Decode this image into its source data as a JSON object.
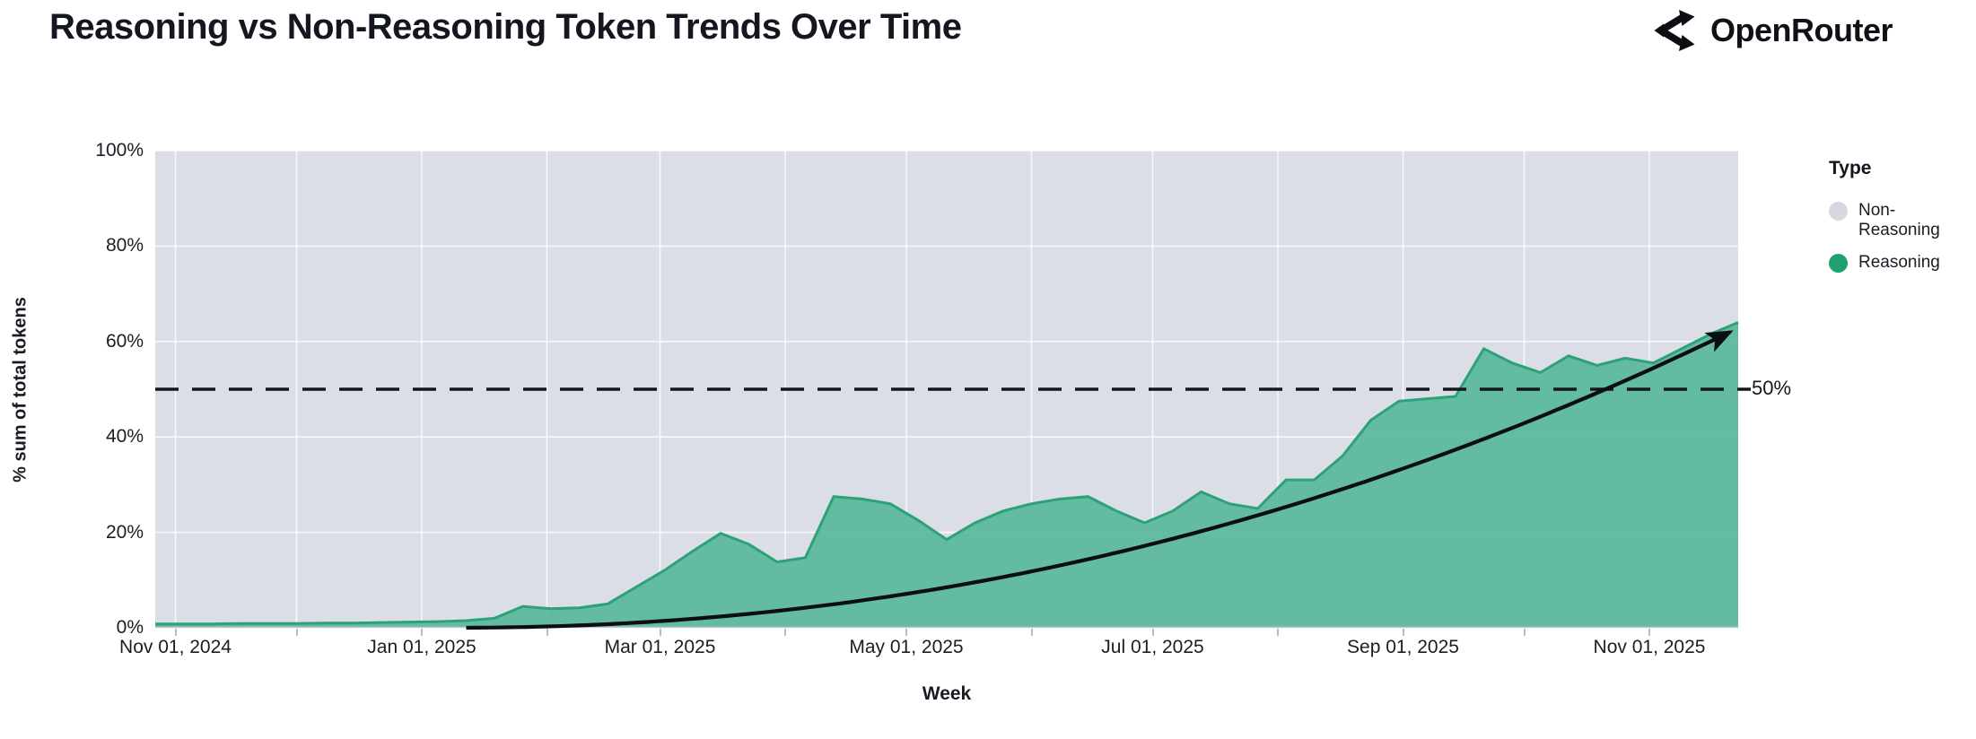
{
  "header": {
    "title": "Reasoning vs Non-Reasoning Token Trends Over Time",
    "brand": "OpenRouter"
  },
  "chart_data": {
    "type": "area",
    "variant": "100%-stacked weekly share, reasoning plotted over non-reasoning background",
    "title": "Reasoning vs Non-Reasoning Token Trends Over Time",
    "xlabel": "Week",
    "ylabel": "% sum of total tokens",
    "ylim": [
      0,
      100
    ],
    "grid": true,
    "y_ticks": [
      {
        "value": 0,
        "label": "0%"
      },
      {
        "value": 20,
        "label": "20%"
      },
      {
        "value": 40,
        "label": "40%"
      },
      {
        "value": 60,
        "label": "60%"
      },
      {
        "value": 80,
        "label": "80%"
      },
      {
        "value": 100,
        "label": "100%"
      }
    ],
    "x_total_days": 392,
    "x_ticks": [
      {
        "label": "Nov 01, 2024",
        "day": 5,
        "major": true
      },
      {
        "label": "Dec 01, 2024",
        "day": 35,
        "major": false
      },
      {
        "label": "Jan 01, 2025",
        "day": 66,
        "major": true
      },
      {
        "label": "Feb 01, 2025",
        "day": 97,
        "major": false
      },
      {
        "label": "Mar 01, 2025",
        "day": 125,
        "major": true
      },
      {
        "label": "Apr 01, 2025",
        "day": 156,
        "major": false
      },
      {
        "label": "May 01, 2025",
        "day": 186,
        "major": true
      },
      {
        "label": "Jun 01, 2025",
        "day": 217,
        "major": false
      },
      {
        "label": "Jul 01, 2025",
        "day": 247,
        "major": true
      },
      {
        "label": "Aug 01, 2025",
        "day": 278,
        "major": false
      },
      {
        "label": "Sep 01, 2025",
        "day": 309,
        "major": true
      },
      {
        "label": "Oct 01, 2025",
        "day": 339,
        "major": false
      },
      {
        "label": "Nov 01, 2025",
        "day": 370,
        "major": true
      }
    ],
    "weeks": [
      "2024-10-27",
      "2024-11-03",
      "2024-11-10",
      "2024-11-17",
      "2024-11-24",
      "2024-12-01",
      "2024-12-08",
      "2024-12-15",
      "2024-12-22",
      "2024-12-29",
      "2025-01-05",
      "2025-01-12",
      "2025-01-19",
      "2025-01-26",
      "2025-02-02",
      "2025-02-09",
      "2025-02-16",
      "2025-02-23",
      "2025-03-02",
      "2025-03-09",
      "2025-03-16",
      "2025-03-23",
      "2025-03-30",
      "2025-04-06",
      "2025-04-13",
      "2025-04-20",
      "2025-04-27",
      "2025-05-04",
      "2025-05-11",
      "2025-05-18",
      "2025-05-25",
      "2025-06-01",
      "2025-06-08",
      "2025-06-15",
      "2025-06-22",
      "2025-06-29",
      "2025-07-06",
      "2025-07-13",
      "2025-07-20",
      "2025-07-27",
      "2025-08-03",
      "2025-08-10",
      "2025-08-17",
      "2025-08-24",
      "2025-08-31",
      "2025-09-07",
      "2025-09-14",
      "2025-09-21",
      "2025-09-28",
      "2025-10-05",
      "2025-10-12",
      "2025-10-19",
      "2025-10-26",
      "2025-11-02",
      "2025-11-09",
      "2025-11-16",
      "2025-11-23"
    ],
    "series": [
      {
        "name": "Non-Reasoning",
        "color": "#d5d8e0",
        "note": "complement series: 100 - Reasoning, rendered as the gray plot background"
      },
      {
        "name": "Reasoning",
        "color": "#21a06f",
        "values": [
          0.8,
          0.8,
          0.8,
          0.9,
          0.9,
          0.9,
          1.0,
          1.0,
          1.1,
          1.2,
          1.3,
          1.5,
          2.0,
          4.5,
          4.0,
          4.2,
          5.0,
          8.5,
          12.0,
          16.0,
          19.8,
          17.5,
          13.8,
          14.7,
          27.5,
          27.0,
          26.0,
          22.5,
          18.5,
          22.0,
          24.5,
          26.0,
          27.0,
          27.5,
          24.5,
          22.0,
          24.5,
          28.5,
          26.0,
          25.0,
          31.0,
          31.0,
          36.0,
          43.5,
          47.5,
          48.0,
          48.5,
          58.5,
          55.5,
          53.5,
          57.0,
          55.0,
          56.5,
          55.5,
          58.5,
          61.5,
          64.0
        ]
      }
    ],
    "reference_line": {
      "value": 50,
      "label": "50%",
      "style": "dashed",
      "color": "#14161e"
    },
    "trend_arrow": {
      "start_day": 77,
      "curve_origin_day": 73,
      "end_day": 390,
      "end_value": 62,
      "exponent": 2.1,
      "color": "#0c0e14"
    },
    "legend": {
      "title": "Type",
      "position": "right",
      "entries": [
        {
          "label": "Non-Reasoning",
          "color": "#d5d8e0"
        },
        {
          "label": "Reasoning",
          "color": "#21a06f"
        }
      ]
    },
    "colors": {
      "area_fill": "#58b79c",
      "area_edge": "#2da178",
      "plot_background": "#dbdee7",
      "gridline": "#ffffff"
    }
  }
}
